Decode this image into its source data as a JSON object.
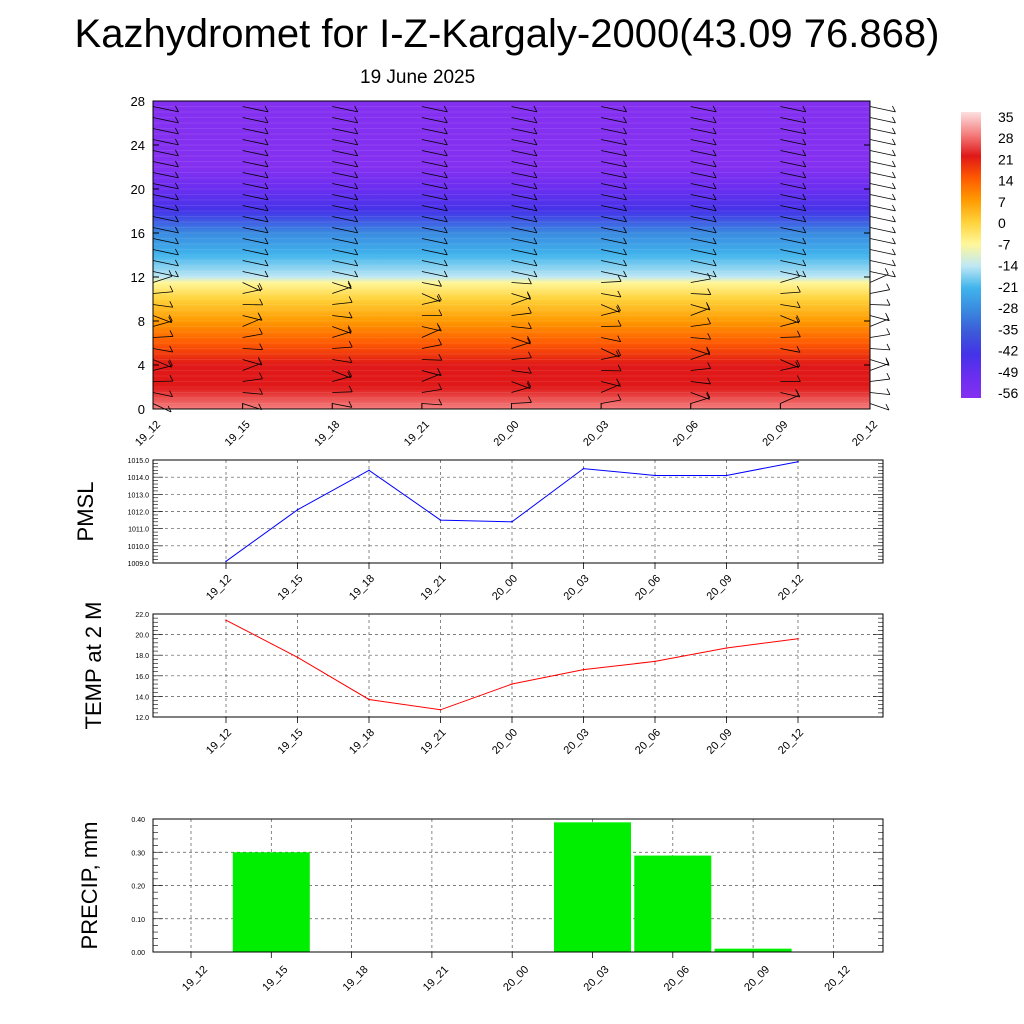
{
  "page": {
    "title": "Kazhydromet for I-Z-Kargaly-2000(43.09 76.868)",
    "subtitle": "19 June 2025"
  },
  "colors": {
    "pmsl_line": "#0000ff",
    "temp_line": "#ff0000",
    "precip_bar": "#00ee00",
    "barb": "#000000",
    "gridline": "#555555"
  },
  "chart_data": [
    {
      "id": "cross_section",
      "type": "heatmap",
      "title": "",
      "xlabel": "",
      "ylabel": "",
      "x_tick_labels": [
        "19_12",
        "19_15",
        "19_18",
        "19_21",
        "20_00",
        "20_03",
        "20_06",
        "20_09",
        "20_12"
      ],
      "y_ticks": [
        0,
        4,
        8,
        12,
        16,
        20,
        24,
        28
      ],
      "ylim": [
        0,
        28
      ],
      "colorbar_labels": [
        "35",
        "28",
        "21",
        "14",
        "7",
        "0",
        "-7",
        "-14",
        "-21",
        "-28",
        "-35",
        "-42",
        "-49",
        "-56"
      ],
      "colorbar_colors": [
        "#fce0e0",
        "#f58080",
        "#e01818",
        "#ff5a00",
        "#ff9a00",
        "#ffd23a",
        "#fff79a",
        "#bfe8f4",
        "#40b4ec",
        "#3a8ae0",
        "#3c5ad8",
        "#4433e8",
        "#6a2ef0",
        "#8430f0"
      ],
      "temperature_profile": [
        {
          "height": 0,
          "temp": 28
        },
        {
          "height": 2,
          "temp": 24
        },
        {
          "height": 4,
          "temp": 18
        },
        {
          "height": 6,
          "temp": 13
        },
        {
          "height": 8,
          "temp": 8
        },
        {
          "height": 10,
          "temp": 2
        },
        {
          "height": 11.5,
          "temp": -4
        },
        {
          "height": 12,
          "temp": -12
        },
        {
          "height": 14,
          "temp": -22
        },
        {
          "height": 16,
          "temp": -30
        },
        {
          "height": 18,
          "temp": -40
        },
        {
          "height": 20,
          "temp": -52
        },
        {
          "height": 22,
          "temp": -58
        },
        {
          "height": 28,
          "temp": -60
        }
      ],
      "wind_barb_levels": [
        0.5,
        1.5,
        2.5,
        3.5,
        4.5,
        5.5,
        6.5,
        7.5,
        8.5,
        9.5,
        10.5,
        11.5,
        12.5,
        13.5,
        14.5,
        15.5,
        16.5,
        17.5,
        18.5,
        19.5,
        20.5,
        21.5,
        22.5,
        23.5,
        24.5,
        25.5,
        26.5,
        27.5
      ]
    },
    {
      "id": "pmsl",
      "type": "line",
      "ylabel": "PMSL",
      "categories": [
        "19_12",
        "19_15",
        "19_18",
        "19_21",
        "20_00",
        "20_03",
        "20_06",
        "20_09",
        "20_12"
      ],
      "values": [
        1009.1,
        1012.1,
        1014.4,
        1011.5,
        1011.4,
        1014.5,
        1014.1,
        1014.1,
        1014.9
      ],
      "ylim": [
        1009.0,
        1015.0
      ],
      "y_ticks": [
        "1009.0",
        "1010.0",
        "1011.0",
        "1012.0",
        "1013.0",
        "1014.0",
        "1015.0"
      ],
      "grid": true
    },
    {
      "id": "temp2m",
      "type": "line",
      "ylabel": "TEMP at 2 M",
      "categories": [
        "19_12",
        "19_15",
        "19_18",
        "19_21",
        "20_00",
        "20_03",
        "20_06",
        "20_09",
        "20_12"
      ],
      "values": [
        21.4,
        17.8,
        13.7,
        12.7,
        15.2,
        16.6,
        17.4,
        18.7,
        19.6
      ],
      "ylim": [
        12.0,
        22.0
      ],
      "y_ticks": [
        "12.0",
        "14.0",
        "16.0",
        "18.0",
        "20.0",
        "22.0"
      ],
      "grid": true
    },
    {
      "id": "precip",
      "type": "bar",
      "ylabel": "PRECIP, mm",
      "categories": [
        "19_12",
        "19_15",
        "19_18",
        "19_21",
        "20_00",
        "20_03",
        "20_06",
        "20_09",
        "20_12"
      ],
      "values": [
        0.0,
        0.3,
        0.0,
        0.0,
        0.0,
        0.39,
        0.29,
        0.01,
        0.0
      ],
      "ylim": [
        0.0,
        0.4
      ],
      "y_ticks": [
        "0.00",
        "0.10",
        "0.20",
        "0.30",
        "0.40"
      ],
      "grid": true
    }
  ]
}
